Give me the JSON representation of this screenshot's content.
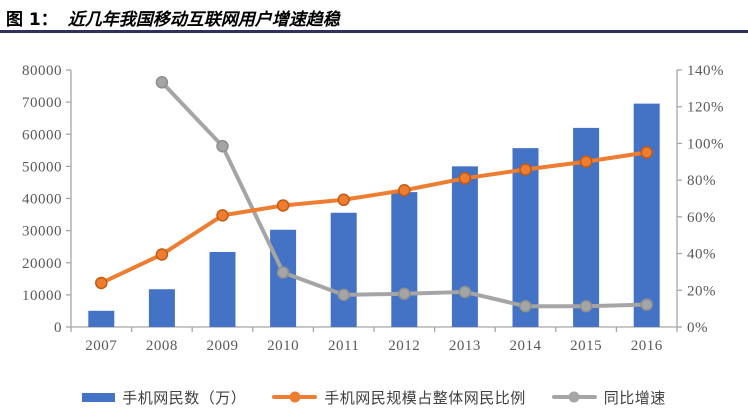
{
  "header": {
    "figure_label": "图 1：",
    "title": "近几年我国移动互联网用户增速趋稳"
  },
  "colors": {
    "title_rule": "#2E3160",
    "axis_line": "#A6A6A6",
    "tick_label": "#595959",
    "legend_text": "#404040",
    "bar_blue": "#4472C4",
    "line_orange": "#ED7D31",
    "line_gray": "#A5A5A5"
  },
  "chart_data": {
    "type": "bar",
    "subtype": "combo-bar-line",
    "grid": false,
    "legend_position": "bottom",
    "categories": [
      "2007",
      "2008",
      "2009",
      "2010",
      "2011",
      "2012",
      "2013",
      "2014",
      "2015",
      "2016"
    ],
    "series": [
      {
        "name": "手机网民数（万）",
        "type": "bar",
        "axis": "left",
        "color": "#4472C4",
        "values": [
          5040,
          11760,
          23344,
          30274,
          35558,
          41997,
          50006,
          55678,
          61981,
          69531
        ]
      },
      {
        "name": "手机网民规模占整体网民比例",
        "type": "line",
        "axis": "right",
        "color": "#ED7D31",
        "marker_stroke": "#C55A11",
        "values": [
          24.0,
          39.5,
          60.8,
          66.2,
          69.3,
          74.5,
          81.0,
          85.8,
          90.1,
          95.1
        ]
      },
      {
        "name": "同比增速",
        "type": "line",
        "axis": "right",
        "color": "#A5A5A5",
        "marker_stroke": "#8F8F8F",
        "values": [
          null,
          133.3,
          98.5,
          29.7,
          17.5,
          18.1,
          19.1,
          11.3,
          11.3,
          12.2
        ]
      }
    ],
    "left_axis": {
      "min": 0,
      "max": 80000,
      "step": 10000,
      "tick_labels": [
        "0",
        "10000",
        "20000",
        "30000",
        "40000",
        "50000",
        "60000",
        "70000",
        "80000"
      ]
    },
    "right_axis": {
      "min": 0,
      "max": 140,
      "step": 20,
      "tick_labels": [
        "0%",
        "20%",
        "40%",
        "60%",
        "80%",
        "100%",
        "120%",
        "140%"
      ]
    }
  }
}
